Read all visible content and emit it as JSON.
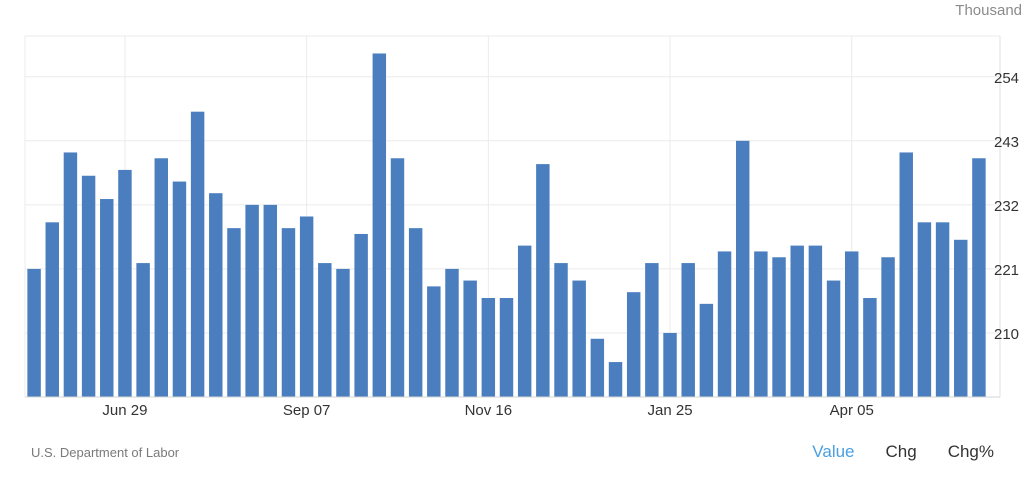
{
  "header": {
    "unit_label": "Thousand"
  },
  "footer": {
    "source": "U.S. Department of Labor",
    "tabs": [
      {
        "label": "Value",
        "active": true
      },
      {
        "label": "Chg",
        "active": false
      },
      {
        "label": "Chg%",
        "active": false
      }
    ]
  },
  "colors": {
    "bar": "#4a7ebf",
    "active_tab": "#4a9fe0",
    "grid": "#ebebeb"
  },
  "chart_data": {
    "type": "bar",
    "ylabel": "",
    "xlabel": "",
    "ylim": [
      199,
      261
    ],
    "yticks": [
      210,
      221,
      232,
      243,
      254
    ],
    "xtick_labels": [
      "Jun 29",
      "Sep 07",
      "Nov 16",
      "Jan 25",
      "Apr 05"
    ],
    "xtick_bar_index": [
      5,
      15,
      25,
      35,
      45
    ],
    "grid": true,
    "values": [
      221,
      229,
      241,
      237,
      233,
      238,
      222,
      240,
      236,
      248,
      234,
      228,
      232,
      232,
      228,
      230,
      222,
      221,
      227,
      258,
      240,
      228,
      218,
      221,
      219,
      216,
      216,
      225,
      239,
      222,
      219,
      209,
      205,
      217,
      222,
      210,
      222,
      215,
      224,
      243,
      224,
      223,
      225,
      225,
      219,
      224,
      216,
      223,
      241,
      229,
      229,
      226,
      240
    ]
  }
}
